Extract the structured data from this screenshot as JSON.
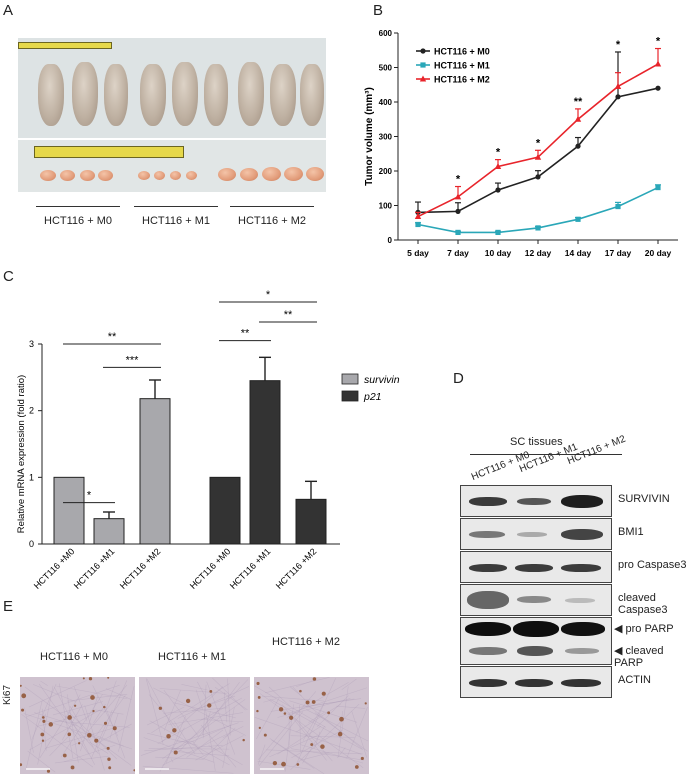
{
  "panels": {
    "A": "A",
    "B": "B",
    "C": "C",
    "D": "D",
    "E": "E"
  },
  "panel_a": {
    "groups": [
      "HCT116 + M0",
      "HCT116 + M1",
      "HCT116 + M2"
    ]
  },
  "chart_b": {
    "type": "line",
    "ylabel": "Tumor volume (mm³)",
    "categories": [
      "5 day",
      "7 day",
      "10 day",
      "12 day",
      "14 day",
      "17 day",
      "20 day"
    ],
    "yticks": [
      "0",
      "100",
      "200",
      "300",
      "400",
      "500",
      "600"
    ],
    "ylim": [
      0,
      600
    ],
    "series": [
      {
        "name": "HCT116 + M0",
        "color": "#222222",
        "marker": "circle",
        "values": [
          80,
          83,
          145,
          183,
          272,
          415,
          440
        ],
        "err": [
          30,
          25,
          20,
          18,
          25,
          130,
          0
        ]
      },
      {
        "name": "HCT116 + M1",
        "color": "#2aa7b8",
        "marker": "square",
        "values": [
          45,
          22,
          22,
          35,
          60,
          97,
          152
        ],
        "err": [
          5,
          3,
          3,
          4,
          5,
          12,
          8
        ]
      },
      {
        "name": "HCT116 + M2",
        "color": "#e8242b",
        "marker": "triangle",
        "values": [
          68,
          125,
          213,
          240,
          350,
          445,
          510
        ],
        "err": [
          12,
          30,
          20,
          20,
          30,
          40,
          45
        ]
      }
    ],
    "significance": [
      "",
      "*",
      "*",
      "*",
      "**",
      "*",
      "*"
    ]
  },
  "chart_c": {
    "type": "bar",
    "ylabel": "Relative mRNA expression (fold ratio)",
    "yticks": [
      "0",
      "1",
      "2",
      "3"
    ],
    "ylim": [
      0,
      3
    ],
    "categories": [
      "HCT116 +M0",
      "HCT116 +M1",
      "HCT116 +M2",
      "HCT116 +M0",
      "HCT116 +M1",
      "HCT116 +M2"
    ],
    "series": [
      {
        "name": "survivin",
        "color": "#a8a8ac",
        "values": [
          1.0,
          0.38,
          2.18
        ],
        "err": [
          0,
          0.1,
          0.28
        ]
      },
      {
        "name": "p21",
        "color": "#333333",
        "values": [
          1.0,
          2.45,
          0.67
        ],
        "err": [
          0,
          0.35,
          0.27
        ]
      }
    ],
    "brackets": [
      {
        "label": "*"
      },
      {
        "label": "***"
      },
      {
        "label": "**"
      },
      {
        "label": "**"
      },
      {
        "label": "**"
      },
      {
        "label": "*"
      }
    ]
  },
  "panel_d": {
    "header": "SC  tissues",
    "lanes": [
      "HCT116 + M0",
      "HCT116 + M1",
      "HCT116 + M2"
    ],
    "blots": [
      "SURVIVIN",
      "BMI1",
      "pro Caspase3",
      "cleaved Caspase3",
      "pro PARP",
      "cleaved  PARP",
      "ACTIN"
    ]
  },
  "panel_e": {
    "stain": "Ki67",
    "groups": [
      "HCT116 + M0",
      "HCT116 + M1",
      "HCT116 + M2"
    ]
  }
}
